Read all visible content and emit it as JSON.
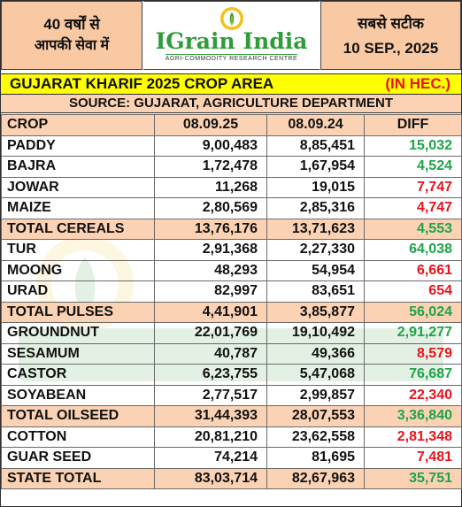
{
  "header": {
    "left_line1": "40 वर्षों से",
    "left_line2": "आपकी सेवा में",
    "brand": "IGrain India",
    "tagline": "AGRI-COMMODITY RESEARCH CENTRE",
    "right_line1": "सबसे सटीक",
    "date": "10 SEP., 2025"
  },
  "title": {
    "text": "GUJARAT KHARIF 2025 CROP AREA",
    "unit": "(IN HEC.)"
  },
  "source": "SOURCE: GUJARAT, AGRICULTURE DEPARTMENT",
  "table": {
    "columns": [
      "CROP",
      "08.09.25",
      "08.09.24",
      "DIFF"
    ],
    "rows": [
      {
        "crop": "PADDY",
        "v2025": "9,00,483",
        "v2024": "8,85,451",
        "diff": "15,032",
        "sign": "pos",
        "total": false
      },
      {
        "crop": "BAJRA",
        "v2025": "1,72,478",
        "v2024": "1,67,954",
        "diff": "4,524",
        "sign": "pos",
        "total": false
      },
      {
        "crop": "JOWAR",
        "v2025": "11,268",
        "v2024": "19,015",
        "diff": "7,747",
        "sign": "neg",
        "total": false
      },
      {
        "crop": "MAIZE",
        "v2025": "2,80,569",
        "v2024": "2,85,316",
        "diff": "4,747",
        "sign": "neg",
        "total": false
      },
      {
        "crop": "TOTAL CEREALS",
        "v2025": "13,76,176",
        "v2024": "13,71,623",
        "diff": "4,553",
        "sign": "pos",
        "total": true
      },
      {
        "crop": "TUR",
        "v2025": "2,91,368",
        "v2024": "2,27,330",
        "diff": "64,038",
        "sign": "pos",
        "total": false
      },
      {
        "crop": "MOONG",
        "v2025": "48,293",
        "v2024": "54,954",
        "diff": "6,661",
        "sign": "neg",
        "total": false
      },
      {
        "crop": "URAD",
        "v2025": "82,997",
        "v2024": "83,651",
        "diff": "654",
        "sign": "neg",
        "total": false
      },
      {
        "crop": "TOTAL PULSES",
        "v2025": "4,41,901",
        "v2024": "3,85,877",
        "diff": "56,024",
        "sign": "pos",
        "total": true
      },
      {
        "crop": "GROUNDNUT",
        "v2025": "22,01,769",
        "v2024": "19,10,492",
        "diff": "2,91,277",
        "sign": "pos",
        "total": false
      },
      {
        "crop": "SESAMUM",
        "v2025": "40,787",
        "v2024": "49,366",
        "diff": "8,579",
        "sign": "neg",
        "total": false
      },
      {
        "crop": "CASTOR",
        "v2025": "6,23,755",
        "v2024": "5,47,068",
        "diff": "76,687",
        "sign": "pos",
        "total": false
      },
      {
        "crop": "SOYABEAN",
        "v2025": "2,77,517",
        "v2024": "2,99,857",
        "diff": "22,340",
        "sign": "neg",
        "total": false
      },
      {
        "crop": "TOTAL OILSEED",
        "v2025": "31,44,393",
        "v2024": "28,07,553",
        "diff": "3,36,840",
        "sign": "pos",
        "total": true
      },
      {
        "crop": "COTTON",
        "v2025": "20,81,210",
        "v2024": "23,62,558",
        "diff": "2,81,348",
        "sign": "neg",
        "total": false
      },
      {
        "crop": "GUAR SEED",
        "v2025": "74,214",
        "v2024": "81,695",
        "diff": "7,481",
        "sign": "neg",
        "total": false
      },
      {
        "crop": "STATE TOTAL",
        "v2025": "83,03,714",
        "v2024": "82,67,963",
        "diff": "35,751",
        "sign": "pos",
        "total": true
      }
    ]
  },
  "colors": {
    "header_bg": "#f9c9a4",
    "title_bg": "#ffff00",
    "total_row_bg": "#fbd2b4",
    "positive": "#1fa34a",
    "negative": "#e8131b",
    "brand_green": "#2f9b3a"
  },
  "icons": {
    "logo": "grain-logo-icon",
    "watermark": "brand-watermark"
  }
}
